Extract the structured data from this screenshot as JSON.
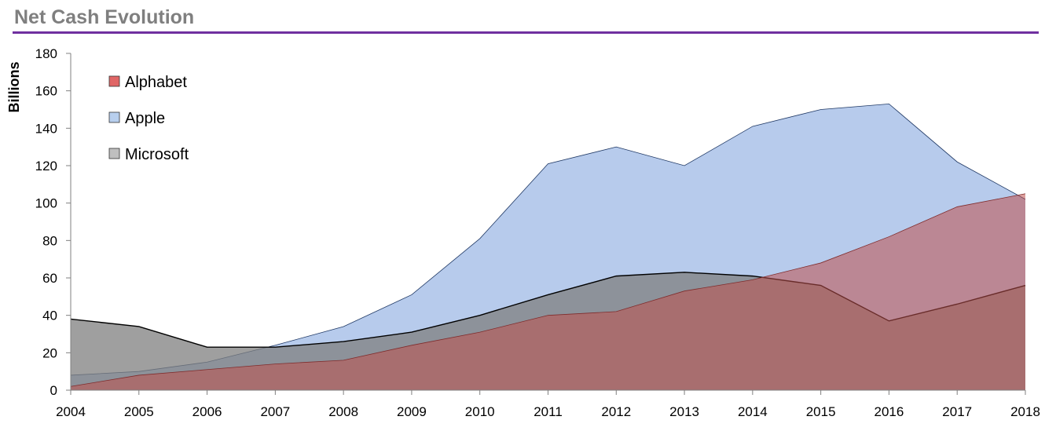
{
  "page": {
    "title": "Net Cash Evolution"
  },
  "colors": {
    "title_rule": "#7030a0",
    "Alphabet": "#c0504d",
    "Apple": "#95b3e3",
    "Microsoft": "#7f7f7f",
    "Alphabet_legend": "#e06666",
    "Apple_legend": "#b8cfee",
    "Microsoft_legend": "#bfbfbf"
  },
  "chart_data": {
    "type": "area",
    "title": "Net Cash Evolution",
    "xlabel": "",
    "ylabel": "Billions",
    "ylim": [
      0,
      180
    ],
    "yticks": [
      0,
      20,
      40,
      60,
      80,
      100,
      120,
      140,
      160,
      180
    ],
    "categories": [
      "2004",
      "2005",
      "2006",
      "2007",
      "2008",
      "2009",
      "2010",
      "2011",
      "2012",
      "2013",
      "2014",
      "2015",
      "2016",
      "2017",
      "2018"
    ],
    "legend_position": "top-left",
    "series": [
      {
        "name": "Alphabet",
        "values": [
          2,
          8,
          11,
          14,
          16,
          24,
          31,
          40,
          42,
          53,
          59,
          68,
          82,
          98,
          105
        ]
      },
      {
        "name": "Apple",
        "values": [
          8,
          10,
          15,
          24,
          34,
          51,
          81,
          121,
          130,
          120,
          141,
          150,
          153,
          122,
          102
        ]
      },
      {
        "name": "Microsoft",
        "values": [
          38,
          34,
          23,
          23,
          26,
          31,
          40,
          51,
          61,
          63,
          61,
          56,
          37,
          46,
          56
        ]
      }
    ],
    "draw_order": [
      "Apple",
      "Microsoft",
      "Alphabet"
    ],
    "grid": false
  }
}
